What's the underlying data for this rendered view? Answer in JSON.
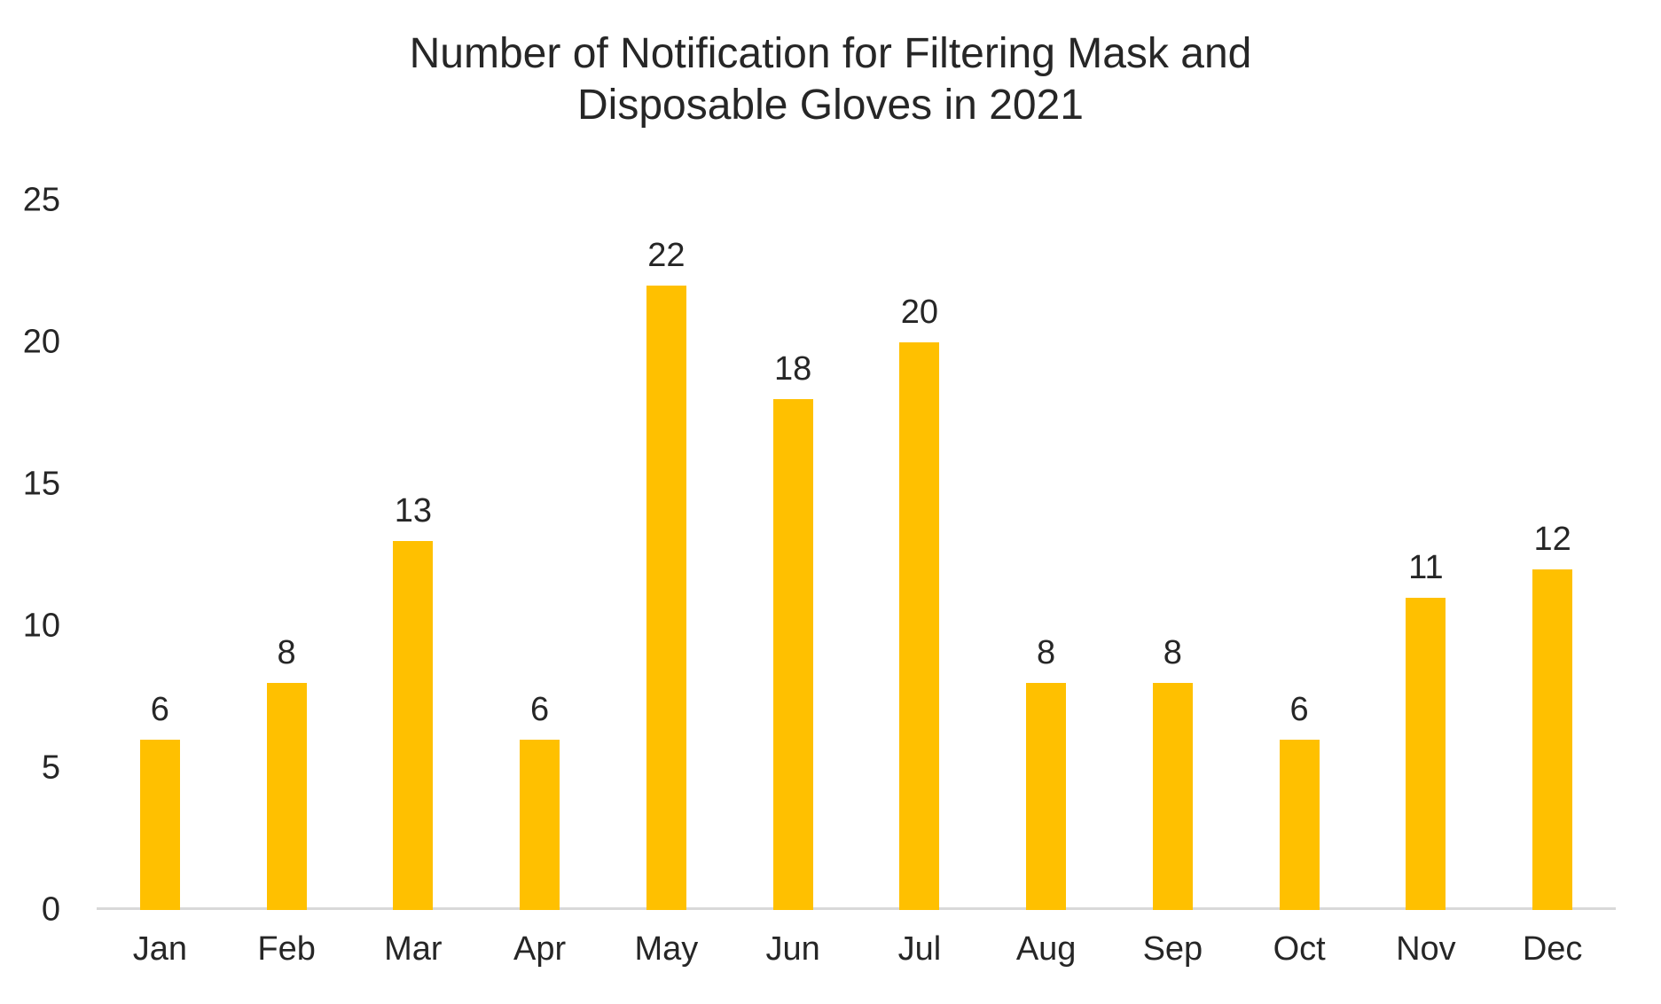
{
  "chart_data": {
    "type": "bar",
    "title": "Number of Notification for Filtering Mask and Disposable Gloves in 2021",
    "title_line1": "Number of Notification for Filtering Mask and",
    "title_line2": "Disposable Gloves in 2021",
    "categories": [
      "Jan",
      "Feb",
      "Mar",
      "Apr",
      "May",
      "Jun",
      "Jul",
      "Aug",
      "Sep",
      "Oct",
      "Nov",
      "Dec"
    ],
    "values": [
      6,
      8,
      13,
      6,
      22,
      18,
      20,
      8,
      8,
      6,
      11,
      12
    ],
    "data_labels_visible": true,
    "y_ticks": [
      0,
      5,
      10,
      15,
      20,
      25
    ],
    "ylim": [
      0,
      25
    ],
    "xlabel": "",
    "ylabel": "",
    "grid": false,
    "legend_position": "none",
    "bar_color": "#FFC000",
    "axis_line_color": "#D9D9D9",
    "text_color": "#262626",
    "background_color": "#FFFFFF"
  }
}
